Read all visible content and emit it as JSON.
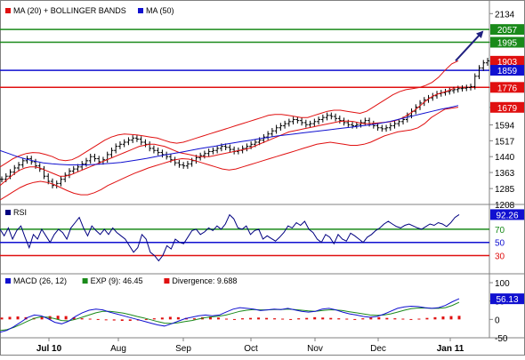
{
  "chart_data": [
    {
      "type": "ohlc",
      "legend": [
        {
          "label": "MA (20) + BOLLINGER BANDS",
          "color": "#e01010"
        },
        {
          "label": "MA (50)",
          "color": "#1010d0"
        }
      ],
      "y_ticks": [
        2134,
        1995,
        1903,
        1776,
        1679,
        1594,
        1517,
        1440,
        1363,
        1285,
        1208
      ],
      "highlighted_levels": [
        {
          "value": 2057,
          "label": "2057",
          "color": "#1a8a1a"
        },
        {
          "value": 1995,
          "label": "1995",
          "color": "#1a8a1a"
        },
        {
          "value": 1903,
          "label": "1903",
          "color": "#e01010"
        },
        {
          "value": 1859,
          "label": "1859",
          "color": "#1010d0"
        },
        {
          "value": 1776,
          "label": "1776",
          "color": "#e01010"
        },
        {
          "value": 1679,
          "label": "1679",
          "color": "#e01010"
        }
      ],
      "horizontal_lines": [
        {
          "value": 2057,
          "color": "#1a8a1a"
        },
        {
          "value": 1995,
          "color": "#1a8a1a"
        },
        {
          "value": 1859,
          "color": "#1010d0"
        },
        {
          "value": 1776,
          "color": "#e01010"
        }
      ],
      "ylim": [
        1208,
        2200
      ],
      "closes": [
        1330,
        1345,
        1365,
        1385,
        1400,
        1420,
        1430,
        1415,
        1395,
        1380,
        1345,
        1320,
        1300,
        1310,
        1330,
        1350,
        1370,
        1380,
        1390,
        1405,
        1420,
        1440,
        1430,
        1415,
        1425,
        1450,
        1470,
        1490,
        1500,
        1510,
        1520,
        1530,
        1525,
        1510,
        1500,
        1480,
        1470,
        1460,
        1450,
        1440,
        1425,
        1410,
        1400,
        1395,
        1405,
        1420,
        1435,
        1445,
        1455,
        1465,
        1470,
        1480,
        1490,
        1485,
        1475,
        1465,
        1470,
        1480,
        1490,
        1500,
        1510,
        1520,
        1535,
        1550,
        1565,
        1580,
        1590,
        1600,
        1610,
        1620,
        1615,
        1605,
        1595,
        1600,
        1610,
        1620,
        1630,
        1640,
        1635,
        1625,
        1615,
        1605,
        1595,
        1590,
        1595,
        1605,
        1615,
        1600,
        1590,
        1580,
        1575,
        1580,
        1590,
        1600,
        1610,
        1620,
        1640,
        1660,
        1680,
        1700,
        1715,
        1725,
        1735,
        1745,
        1750,
        1755,
        1760,
        1765,
        1770,
        1772,
        1775,
        1780,
        1830,
        1870,
        1895,
        1905
      ],
      "ma20": [
        1300,
        1320,
        1340,
        1360,
        1375,
        1385,
        1390,
        1390,
        1385,
        1375,
        1365,
        1355,
        1345,
        1345,
        1350,
        1360,
        1370,
        1380,
        1390,
        1400,
        1410,
        1420,
        1430,
        1440,
        1450,
        1460,
        1470,
        1480,
        1490,
        1495,
        1500,
        1500,
        1495,
        1490,
        1480,
        1470,
        1460,
        1455,
        1450,
        1445,
        1440,
        1440,
        1440,
        1445,
        1450,
        1455,
        1460,
        1465,
        1470,
        1475,
        1480,
        1490,
        1500,
        1510,
        1520,
        1530,
        1540,
        1550,
        1560,
        1565,
        1570,
        1575,
        1580,
        1585,
        1590,
        1595,
        1600,
        1605,
        1610,
        1612,
        1612,
        1610,
        1605,
        1600,
        1600,
        1602,
        1604,
        1606,
        1608,
        1612,
        1620,
        1630,
        1645,
        1660,
        1680,
        1700,
        1720,
        1735,
        1745,
        1752,
        1760,
        1770,
        1780
      ],
      "bb_upper": [
        1390,
        1410,
        1430,
        1445,
        1455,
        1460,
        1458,
        1450,
        1440,
        1425,
        1420,
        1425,
        1440,
        1460,
        1480,
        1500,
        1520,
        1535,
        1545,
        1550,
        1548,
        1545,
        1540,
        1535,
        1530,
        1520,
        1510,
        1505,
        1510,
        1520,
        1530,
        1540,
        1550,
        1560,
        1570,
        1580,
        1590,
        1600,
        1610,
        1620,
        1630,
        1640,
        1645,
        1645,
        1640,
        1635,
        1630,
        1630,
        1640,
        1650,
        1660,
        1665,
        1665,
        1660,
        1655,
        1650,
        1660,
        1680,
        1700,
        1720,
        1740,
        1755,
        1765,
        1770,
        1775,
        1785,
        1800,
        1825,
        1860,
        1890,
        1905
      ],
      "bb_lower": [
        1230,
        1250,
        1270,
        1290,
        1305,
        1315,
        1320,
        1315,
        1305,
        1290,
        1275,
        1262,
        1255,
        1255,
        1265,
        1280,
        1300,
        1315,
        1330,
        1345,
        1360,
        1372,
        1385,
        1395,
        1405,
        1415,
        1425,
        1430,
        1428,
        1420,
        1410,
        1400,
        1390,
        1380,
        1375,
        1380,
        1390,
        1400,
        1410,
        1420,
        1430,
        1440,
        1450,
        1460,
        1470,
        1480,
        1490,
        1500,
        1505,
        1510,
        1505,
        1500,
        1495,
        1495,
        1500,
        1510,
        1525,
        1540,
        1550,
        1560,
        1565,
        1570,
        1580,
        1600,
        1630,
        1650,
        1670,
        1675,
        1680
      ],
      "ma50": [
        1470,
        1455,
        1440,
        1428,
        1418,
        1410,
        1405,
        1402,
        1400,
        1400,
        1400,
        1402,
        1405,
        1408,
        1412,
        1418,
        1425,
        1432,
        1440,
        1448,
        1455,
        1462,
        1470,
        1478,
        1485,
        1492,
        1500,
        1507,
        1514,
        1520,
        1527,
        1533,
        1540,
        1545,
        1550,
        1555,
        1560,
        1565,
        1570,
        1575,
        1580,
        1585,
        1590,
        1595,
        1602,
        1610,
        1620,
        1630,
        1640,
        1650,
        1660,
        1670,
        1678,
        1688
      ],
      "arrow": {
        "from": 1905,
        "to": 2045,
        "color": "#202080"
      }
    },
    {
      "type": "line",
      "legend": [
        {
          "label": "RSI",
          "color": "#000080"
        }
      ],
      "y_ticks": [
        70,
        50,
        30
      ],
      "highlighted_levels": [
        {
          "value": 92.26,
          "label": "92.26",
          "color": "#1010d0"
        }
      ],
      "horizontal_lines": [
        {
          "value": 70,
          "color": "#1a8a1a"
        },
        {
          "value": 50,
          "color": "#1010d0"
        },
        {
          "value": 30,
          "color": "#e01010"
        }
      ],
      "ylim": [
        5,
        105
      ],
      "series": [
        {
          "values": [
            70,
            60,
            72,
            55,
            68,
            75,
            58,
            42,
            62,
            55,
            70,
            60,
            50,
            62,
            70,
            65,
            55,
            72,
            80,
            88,
            72,
            60,
            75,
            68,
            62,
            70,
            62,
            72,
            65,
            60,
            55,
            45,
            35,
            42,
            62,
            55,
            35,
            30,
            22,
            30,
            45,
            40,
            55,
            50,
            48,
            58,
            68,
            70,
            62,
            66,
            72,
            68,
            75,
            70,
            78,
            92,
            86,
            72,
            70,
            75,
            62,
            68,
            70,
            55,
            60,
            56,
            52,
            58,
            65,
            75,
            72,
            80,
            76,
            82,
            70,
            65,
            55,
            50,
            62,
            58,
            48,
            62,
            55,
            52,
            64,
            60,
            55,
            50,
            58,
            62,
            68,
            72,
            78,
            82,
            78,
            74,
            72,
            76,
            78,
            75,
            72,
            70,
            74,
            78,
            76,
            80,
            78,
            74,
            80,
            88,
            92.26
          ]
        }
      ]
    },
    {
      "type": "line+bar",
      "legend": [
        {
          "label": "MACD (26, 12)",
          "color": "#1010d0"
        },
        {
          "label": "EXP (9): 46.45",
          "color": "#1a8a1a"
        },
        {
          "label": "Divergence: 9.688",
          "color": "#e01010"
        }
      ],
      "y_ticks": [
        100,
        50,
        0,
        -50
      ],
      "highlighted_levels": [
        {
          "value": 56.13,
          "label": "56.13",
          "color": "#1010d0"
        }
      ],
      "ylim": [
        -50,
        100
      ],
      "macd": [
        -35,
        -30,
        -20,
        -8,
        5,
        12,
        10,
        2,
        -8,
        -12,
        -5,
        8,
        18,
        25,
        28,
        26,
        20,
        15,
        10,
        5,
        0,
        -5,
        -10,
        -15,
        -18,
        -12,
        -5,
        2,
        6,
        10,
        12,
        10,
        12,
        20,
        28,
        32,
        30,
        28,
        24,
        26,
        28,
        27,
        30,
        26,
        22,
        20,
        22,
        28,
        30,
        26,
        20,
        15,
        12,
        8,
        6,
        8,
        14,
        22,
        30,
        34,
        36,
        35,
        32,
        30,
        32,
        38,
        48,
        56.13
      ],
      "signal": [
        -30,
        -28,
        -22,
        -14,
        -5,
        3,
        7,
        6,
        2,
        -3,
        -4,
        0,
        6,
        12,
        18,
        22,
        22,
        20,
        17,
        13,
        8,
        4,
        -1,
        -6,
        -10,
        -11,
        -9,
        -6,
        -3,
        1,
        5,
        7,
        9,
        12,
        17,
        22,
        25,
        27,
        26,
        26,
        27,
        27,
        28,
        27,
        25,
        23,
        22,
        24,
        26,
        26,
        24,
        21,
        18,
        15,
        12,
        11,
        12,
        15,
        20,
        25,
        29,
        31,
        31,
        30,
        30,
        32,
        38,
        46.45
      ],
      "divergence": [
        5,
        7,
        8,
        6,
        4,
        7,
        9,
        10,
        9,
        6,
        3,
        2,
        1,
        -2,
        -3,
        -4,
        -4,
        -3,
        1,
        3,
        5,
        7,
        6,
        4,
        3,
        6,
        8,
        5,
        2,
        1,
        3,
        4,
        5,
        4,
        3,
        2,
        1,
        3,
        4,
        6,
        5,
        4,
        3,
        2,
        1,
        3,
        5,
        6,
        4,
        3,
        2,
        1,
        2,
        4,
        6,
        8,
        9,
        9.688
      ]
    }
  ],
  "x_axis": {
    "labels": [
      "Jul 10",
      "Aug",
      "Sep",
      "Oct",
      "Nov",
      "Dec",
      "Jan 11"
    ]
  }
}
